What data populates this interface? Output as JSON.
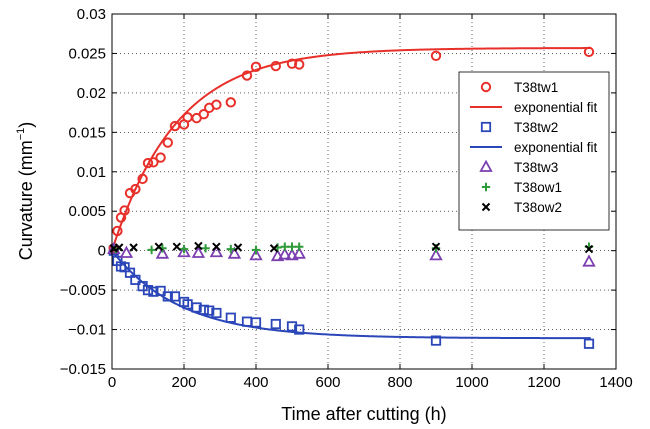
{
  "chart_data": {
    "type": "scatter",
    "title": "",
    "xlabel": "Time after cutting (h)",
    "ylabel": "Curvature (mm",
    "ylabel_sup": "−1",
    "ylabel_close": ")",
    "xlim": [
      0,
      1400
    ],
    "ylim": [
      -0.015,
      0.03
    ],
    "xticks": [
      0,
      200,
      400,
      600,
      800,
      1000,
      1200,
      1400
    ],
    "yticks": [
      -0.015,
      -0.01,
      -0.005,
      0,
      0.005,
      0.01,
      0.015,
      0.02,
      0.025,
      0.03
    ],
    "xtick_labels": [
      "0",
      "200",
      "400",
      "600",
      "800",
      "1000",
      "1200",
      "1400"
    ],
    "ytick_labels": [
      "−0.015",
      "−0.01",
      "−0.005",
      "0",
      "0.005",
      "0.01",
      "0.015",
      "0.02",
      "0.025",
      "0.03"
    ],
    "grid": true,
    "legend_position": "right",
    "series": [
      {
        "name": "T38tw1",
        "marker": "circle",
        "color": "#e8302b",
        "x": [
          5,
          15,
          25,
          35,
          50,
          65,
          85,
          100,
          115,
          135,
          155,
          175,
          200,
          210,
          235,
          255,
          270,
          290,
          330,
          375,
          400,
          455,
          500,
          520,
          900,
          1325
        ],
        "y": [
          0.0003,
          0.0025,
          0.0042,
          0.0051,
          0.0073,
          0.0078,
          0.0091,
          0.0111,
          0.0112,
          0.0118,
          0.0137,
          0.0158,
          0.016,
          0.0169,
          0.0168,
          0.0173,
          0.0181,
          0.0185,
          0.0188,
          0.0222,
          0.0233,
          0.0234,
          0.0237,
          0.0236,
          0.0247,
          0.0252
        ]
      },
      {
        "name": "exponential fit",
        "marker": "line",
        "color": "#e8302b",
        "fit": {
          "a": 0.0257,
          "tau": 180
        }
      },
      {
        "name": "T38tw2",
        "marker": "square",
        "color": "#2b46b8",
        "x": [
          5,
          15,
          25,
          35,
          50,
          65,
          85,
          100,
          115,
          135,
          155,
          175,
          200,
          210,
          235,
          255,
          270,
          290,
          330,
          375,
          400,
          455,
          500,
          520,
          900,
          1325
        ],
        "y": [
          0.0,
          -0.0013,
          -0.002,
          -0.0021,
          -0.0028,
          -0.0037,
          -0.0045,
          -0.005,
          -0.0052,
          -0.0051,
          -0.0058,
          -0.0058,
          -0.0065,
          -0.0068,
          -0.0072,
          -0.0075,
          -0.0076,
          -0.0079,
          -0.0085,
          -0.009,
          -0.0091,
          -0.0093,
          -0.0096,
          -0.01,
          -0.0114,
          -0.0118
        ]
      },
      {
        "name": "exponential fit",
        "marker": "line",
        "color": "#2b46b8",
        "fit": {
          "a": -0.0111,
          "tau": 190
        }
      },
      {
        "name": "T38tw3",
        "marker": "triangle",
        "color": "#7b3fb0",
        "x": [
          5,
          40,
          140,
          200,
          240,
          290,
          340,
          400,
          460,
          480,
          500,
          520,
          900,
          1325
        ],
        "y": [
          0.0002,
          -0.0003,
          -0.0004,
          -0.0002,
          -0.0003,
          -0.0002,
          -0.0004,
          -0.0006,
          -0.0007,
          -0.0005,
          -0.0006,
          -0.0004,
          -0.0006,
          -0.0014
        ]
      },
      {
        "name": "T38ow1",
        "marker": "plus",
        "color": "#2e9a3a",
        "x": [
          10,
          110,
          140,
          200,
          260,
          330,
          400,
          460,
          480,
          500,
          520,
          900,
          1325
        ],
        "y": [
          0.0002,
          0.0001,
          0.0003,
          0.0002,
          0.0003,
          0.0002,
          0.0001,
          0.0004,
          0.0005,
          0.0005,
          0.0005,
          0.0003,
          0.0005
        ]
      },
      {
        "name": "T38ow2",
        "marker": "x",
        "color": "#000000",
        "x": [
          5,
          20,
          60,
          130,
          180,
          240,
          290,
          350,
          450,
          900,
          1325
        ],
        "y": [
          0.0003,
          0.0004,
          0.0004,
          0.0005,
          0.0005,
          0.0006,
          0.0005,
          0.0004,
          0.0003,
          0.0005,
          0.0002
        ]
      }
    ]
  }
}
